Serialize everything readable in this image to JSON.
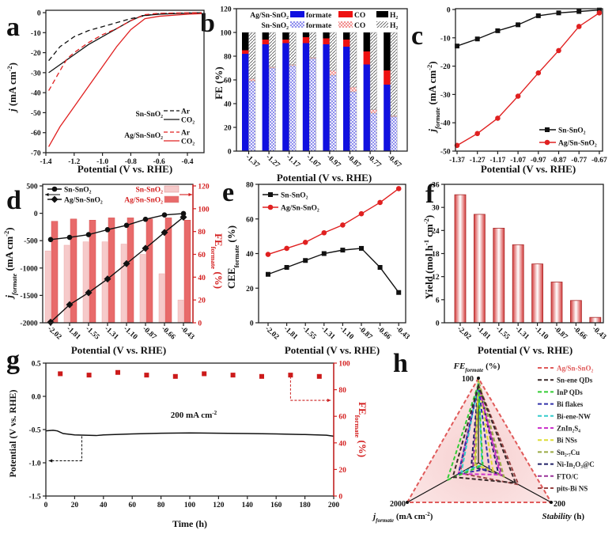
{
  "colors": {
    "sn": "#111111",
    "ag": "#e02020",
    "formate": "#1010e0",
    "co": "#ee1111",
    "h2": "#000000",
    "fe_axis": "#d42020",
    "bar_light": "#f6caca",
    "bar_dark": "#e86a6a"
  },
  "panel_labels": [
    "a",
    "b",
    "c",
    "d",
    "e",
    "f",
    "g",
    "h"
  ],
  "chart_data": [
    {
      "id": "a",
      "type": "line",
      "xlabel": "Potential (V vs. RHE)",
      "ylabel": [
        [
          "j",
          "i"
        ],
        [
          " (mA cm",
          ""
        ],
        [
          "-2",
          "sup"
        ],
        [
          ")",
          ""
        ]
      ],
      "xlim": [
        -1.4,
        -0.3
      ],
      "ylim": [
        -70,
        0
      ],
      "xticks": [
        -1.4,
        -1.2,
        -1.0,
        -0.8,
        -0.6,
        -0.4
      ],
      "xtick_labels": [
        "-1.4",
        "-1.2",
        "-1.0",
        "-0.8",
        "-0.6",
        "-0.4"
      ],
      "yticks": [
        0,
        -10,
        -20,
        -30,
        -40,
        -50,
        -60,
        -70
      ],
      "ytick_labels": [
        "0",
        "-10",
        "-20",
        "-30",
        "-40",
        "-50",
        "-60",
        "-70"
      ],
      "legend_groups": [
        {
          "name": "Sn-SnO₂",
          "entries": [
            "Ar",
            "CO₂"
          ]
        },
        {
          "name": "Ag/Sn-SnO₂",
          "entries": [
            "Ar",
            "CO₂"
          ]
        }
      ],
      "series": [
        {
          "group": "Sn-SnO₂",
          "name": "Ar",
          "dash": true,
          "color_key": "sn",
          "points": [
            [
              -1.38,
              -24
            ],
            [
              -1.3,
              -17
            ],
            [
              -1.2,
              -12
            ],
            [
              -1.1,
              -9
            ],
            [
              -1.0,
              -7
            ],
            [
              -0.9,
              -5
            ],
            [
              -0.8,
              -3
            ],
            [
              -0.7,
              -1.5
            ],
            [
              -0.6,
              -0.5
            ],
            [
              -0.3,
              0
            ]
          ]
        },
        {
          "group": "Sn-SnO₂",
          "name": "CO₂",
          "dash": false,
          "color_key": "sn",
          "points": [
            [
              -1.38,
              -30
            ],
            [
              -1.3,
              -26
            ],
            [
              -1.2,
              -21
            ],
            [
              -1.1,
              -16
            ],
            [
              -1.0,
              -12
            ],
            [
              -0.9,
              -8
            ],
            [
              -0.8,
              -4
            ],
            [
              -0.72,
              -1.5
            ],
            [
              -0.6,
              -0.8
            ],
            [
              -0.3,
              0
            ]
          ]
        },
        {
          "group": "Ag/Sn-SnO₂",
          "name": "Ar",
          "dash": true,
          "color_key": "ag",
          "points": [
            [
              -1.38,
              -39
            ],
            [
              -1.3,
              -29
            ],
            [
              -1.25,
              -23
            ],
            [
              -1.2,
              -20
            ],
            [
              -1.1,
              -15
            ],
            [
              -1.0,
              -11
            ],
            [
              -0.9,
              -8
            ],
            [
              -0.8,
              -4
            ],
            [
              -0.7,
              -1
            ],
            [
              -0.6,
              -0.3
            ],
            [
              -0.3,
              0
            ]
          ]
        },
        {
          "group": "Ag/Sn-SnO₂",
          "name": "CO₂",
          "dash": false,
          "color_key": "ag",
          "points": [
            [
              -1.38,
              -67
            ],
            [
              -1.3,
              -57
            ],
            [
              -1.2,
              -47
            ],
            [
              -1.1,
              -37
            ],
            [
              -1.0,
              -27
            ],
            [
              -0.9,
              -17
            ],
            [
              -0.8,
              -8.5
            ],
            [
              -0.7,
              -3
            ],
            [
              -0.6,
              -1.8
            ],
            [
              -0.4,
              -0.8
            ],
            [
              -0.3,
              -0.5
            ]
          ]
        }
      ]
    },
    {
      "id": "b",
      "type": "bar",
      "xlabel": "Potential (V vs. RHE)",
      "ylabel": [
        [
          "FE (%)",
          ""
        ]
      ],
      "ylim": [
        0,
        120
      ],
      "yticks": [
        0,
        20,
        40,
        60,
        80,
        100,
        120
      ],
      "ytick_labels": [
        "0",
        "20",
        "40",
        "60",
        "80",
        "100",
        "120"
      ],
      "categories": [
        "-1.37",
        "-1.27",
        "-1.17",
        "-1.07",
        "-0.97",
        "-0.87",
        "-0.77",
        "-0.67"
      ],
      "legend": {
        "rows": [
          "Ag/Sn-SnO₂",
          "Sn-SnO₂"
        ],
        "products": [
          "formate",
          "CO",
          "H₂"
        ]
      },
      "series": [
        {
          "name": "Ag/Sn-SnO₂",
          "formate": [
            82,
            90,
            91,
            91,
            90,
            88,
            73,
            56
          ],
          "CO": [
            3,
            4,
            3,
            5,
            5,
            6,
            11,
            12
          ],
          "H2": [
            15,
            6,
            6,
            4,
            5,
            6,
            16,
            32
          ]
        },
        {
          "name": "Sn-SnO₂",
          "formate": [
            59,
            70,
            72,
            78,
            64,
            50,
            32,
            29
          ],
          "CO": [
            2,
            1,
            1,
            1,
            4,
            4,
            3,
            1
          ],
          "H2": [
            39,
            29,
            27,
            21,
            32,
            46,
            65,
            70
          ]
        }
      ]
    },
    {
      "id": "c",
      "type": "line",
      "xlabel": "Potential (V vs. RHE)",
      "ylabel": [
        [
          "j",
          "i"
        ],
        [
          "formate",
          "subi"
        ],
        [
          " (mA cm",
          ""
        ],
        [
          "-2",
          "sup"
        ],
        [
          ")",
          ""
        ]
      ],
      "ylim": [
        -50,
        0
      ],
      "yticks": [
        0,
        -10,
        -20,
        -30,
        -40,
        -50
      ],
      "ytick_labels": [
        "0",
        "-10",
        "-20",
        "-30",
        "-40",
        "-50"
      ],
      "categories": [
        "-1.37",
        "-1.27",
        "-1.17",
        "-1.07",
        "-0.97",
        "-0.87",
        "-0.77",
        "-0.67"
      ],
      "series": [
        {
          "name": "Sn-SnO₂",
          "marker": "square",
          "color_key": "sn",
          "values": [
            -12.9,
            -10.4,
            -7.5,
            -5.4,
            -2.2,
            -1.2,
            -0.7,
            -0.2
          ]
        },
        {
          "name": "Ag/Sn-SnO₂",
          "marker": "circle",
          "color_key": "ag",
          "values": [
            -48,
            -43.8,
            -38.4,
            -30.6,
            -22.4,
            -14.5,
            -6,
            -1.2
          ]
        }
      ]
    },
    {
      "id": "d",
      "type": "line+bar",
      "xlabel": "Potential (V vs. RHE)",
      "ylabel": [
        [
          "j",
          "i"
        ],
        [
          "formate",
          "subi"
        ],
        [
          " (mA cm",
          ""
        ],
        [
          "-2",
          "sup"
        ],
        [
          ")",
          ""
        ]
      ],
      "ylabel_right": [
        [
          "FE",
          ""
        ],
        [
          "formate",
          "sub"
        ],
        [
          " (%)",
          ""
        ]
      ],
      "ylim": [
        -2000,
        500
      ],
      "yticks": [
        500,
        0,
        -500,
        -1000,
        -1500,
        -2000
      ],
      "ytick_labels": [
        "500",
        "0",
        "-500",
        "-1000",
        "-1500",
        "-2000"
      ],
      "ylim_right": [
        0,
        120
      ],
      "yticks_right": [
        0,
        20,
        40,
        60,
        80,
        100,
        120
      ],
      "ytick_labels_right": [
        "0",
        "20",
        "40",
        "60",
        "80",
        "100",
        "120"
      ],
      "categories": [
        "-2.02",
        "-1.81",
        "-1.55",
        "-1.31",
        "-1.10",
        "-0.87",
        "-0.66",
        "-0.43"
      ],
      "lines": [
        {
          "name": "Sn-SnO₂",
          "marker": "circle",
          "values": [
            -480,
            -440,
            -390,
            -300,
            -220,
            -110,
            -30,
            -5
          ]
        },
        {
          "name": "Ag/Sn-SnO₂",
          "marker": "diamond",
          "values": [
            -1990,
            -1670,
            -1450,
            -1200,
            -920,
            -640,
            -350,
            -70
          ]
        }
      ],
      "bars": [
        {
          "name": "Sn-SnO₂",
          "color_key": "bar_light",
          "values": [
            63,
            68,
            71,
            71,
            69,
            60,
            43,
            20
          ]
        },
        {
          "name": "Ag/Sn-SnO₂",
          "color_key": "bar_dark",
          "values": [
            89,
            91,
            90,
            92,
            92,
            91,
            92,
            90
          ]
        }
      ]
    },
    {
      "id": "e",
      "type": "line",
      "xlabel": "Potential (V vs. RHE)",
      "ylabel": [
        [
          "CEE",
          ""
        ],
        [
          "formate",
          "sub"
        ],
        [
          " (%)",
          ""
        ]
      ],
      "ylim": [
        0,
        80
      ],
      "yticks": [
        0,
        20,
        40,
        60,
        80
      ],
      "ytick_labels": [
        "0",
        "20",
        "40",
        "60",
        "80"
      ],
      "categories": [
        "-2.02",
        "-1.81",
        "-1.55",
        "-1.31",
        "-1.10",
        "-0.87",
        "-0.66",
        "-0.43"
      ],
      "series": [
        {
          "name": "Sn-SnO₂",
          "marker": "square",
          "color_key": "sn",
          "values": [
            28,
            32,
            36,
            40,
            42,
            43,
            32,
            17.5
          ]
        },
        {
          "name": "Ag/Sn-SnO₂",
          "marker": "circle",
          "color_key": "ag",
          "values": [
            39.5,
            43,
            46.5,
            52,
            56.5,
            63,
            69.5,
            77.5
          ]
        }
      ]
    },
    {
      "id": "f",
      "type": "bar",
      "xlabel": "Potential (V vs. RHE)",
      "ylabel": [
        [
          "Yield (mol h",
          ""
        ],
        [
          "-1",
          "sup"
        ],
        [
          " cm",
          ""
        ],
        [
          "-2",
          "sup"
        ],
        [
          ")",
          ""
        ]
      ],
      "ylim": [
        0,
        36
      ],
      "yticks": [
        0,
        6,
        12,
        18,
        24,
        30,
        36
      ],
      "ytick_labels": [
        "0",
        "6",
        "12",
        "18",
        "24",
        "30",
        "36"
      ],
      "categories": [
        "-2.02",
        "-1.81",
        "-1.55",
        "-1.31",
        "-1.10",
        "-0.87",
        "-0.66",
        "-0.43"
      ],
      "values": [
        33.3,
        28.2,
        24.6,
        20.3,
        15.3,
        10.6,
        5.8,
        1.4
      ]
    },
    {
      "id": "g",
      "type": "line+scatter",
      "xlabel": "Time (h)",
      "ylabel": [
        [
          "Potential (V vs. RHE)",
          ""
        ]
      ],
      "ylabel_right": [
        [
          "FE",
          ""
        ],
        [
          "formate",
          "sub"
        ],
        [
          " (%)",
          ""
        ]
      ],
      "annotation": [
        [
          "200 mA cm",
          ""
        ],
        [
          "-2",
          "sup"
        ]
      ],
      "xlim": [
        0,
        200
      ],
      "xticks": [
        0,
        20,
        40,
        60,
        80,
        100,
        120,
        140,
        160,
        180,
        200
      ],
      "xtick_labels": [
        "0",
        "20",
        "40",
        "60",
        "80",
        "100",
        "120",
        "140",
        "160",
        "180",
        "200"
      ],
      "ylim": [
        -1.5,
        0.5
      ],
      "yticks": [
        0.5,
        0,
        -0.5,
        -1,
        -1.5
      ],
      "ytick_labels": [
        "0.5",
        "0.0",
        "-0.5",
        "-1.0",
        "-1.5"
      ],
      "ylim_right": [
        0,
        100
      ],
      "yticks_right": [
        0,
        20,
        40,
        60,
        80,
        100
      ],
      "ytick_labels_right": [
        "0",
        "20",
        "40",
        "60",
        "80",
        "100"
      ],
      "potential": [
        [
          0,
          -0.52
        ],
        [
          5,
          -0.51
        ],
        [
          8,
          -0.52
        ],
        [
          12,
          -0.56
        ],
        [
          20,
          -0.58
        ],
        [
          35,
          -0.59
        ],
        [
          40,
          -0.58
        ],
        [
          60,
          -0.565
        ],
        [
          80,
          -0.555
        ],
        [
          100,
          -0.55
        ],
        [
          120,
          -0.555
        ],
        [
          140,
          -0.56
        ],
        [
          160,
          -0.565
        ],
        [
          180,
          -0.575
        ],
        [
          195,
          -0.585
        ],
        [
          200,
          -0.6
        ]
      ],
      "fe": [
        [
          10,
          92
        ],
        [
          30,
          91
        ],
        [
          50,
          93
        ],
        [
          70,
          91
        ],
        [
          90,
          90
        ],
        [
          110,
          92
        ],
        [
          130,
          91
        ],
        [
          150,
          90
        ],
        [
          170,
          91
        ],
        [
          190,
          90
        ]
      ]
    },
    {
      "id": "h",
      "type": "radar",
      "axes": [
        {
          "key": "fe",
          "label": [
            [
              "FE",
              "bi"
            ],
            [
              "formate",
              "subi"
            ],
            [
              " (%)",
              ""
            ]
          ],
          "max_label": "100",
          "max": 100
        },
        {
          "key": "j",
          "label": [
            [
              "j",
              "i"
            ],
            [
              "formate",
              "subi"
            ],
            [
              " (mA cm",
              ""
            ],
            [
              "-2",
              "sup"
            ],
            [
              ")",
              ""
            ]
          ],
          "max_label": "2000",
          "max": 2000
        },
        {
          "key": "stab",
          "label": [
            [
              "Stability",
              "bi"
            ],
            [
              " (h)",
              ""
            ]
          ],
          "max_label": "200",
          "max": 200
        }
      ],
      "series": [
        {
          "name": "Ag/Sn-SnO₂",
          "color": "#e05a5a",
          "fe": 100,
          "j": 2000,
          "stab": 200
        },
        {
          "name": "Sn-ene QDs",
          "color": "#3a2a2a",
          "fe": 91,
          "j": 720,
          "stab": 102
        },
        {
          "name": "InP QDs",
          "color": "#33cc33",
          "fe": 93,
          "j": 880,
          "stab": 12
        },
        {
          "name": "Bi flakes",
          "color": "#3333aa",
          "fe": 90,
          "j": 560,
          "stab": 30
        },
        {
          "name": "Bi-ene-NW",
          "color": "#33cccc",
          "fe": 94,
          "j": 480,
          "stab": 10
        },
        {
          "name": "ZnIn₂S₄",
          "color": "#cc33cc",
          "fe": 92,
          "j": 560,
          "stab": 60
        },
        {
          "name": "Bi NSs",
          "color": "#dddd33",
          "fe": 95,
          "j": 100,
          "stab": 40
        },
        {
          "name": "Sn₂.₇Cu",
          "color": "#99aa44",
          "fe": 98,
          "j": 80,
          "stab": 70
        },
        {
          "name": "Ni-In₂O₃@C",
          "color": "#222266",
          "fe": 93,
          "j": 200,
          "stab": 55
        },
        {
          "name": "FTO/C",
          "color": "#993399",
          "fe": 90,
          "j": 150,
          "stab": 65
        },
        {
          "name": "pits-Bi NS",
          "color": "#994444",
          "fe": 92,
          "j": 520,
          "stab": 110
        }
      ]
    }
  ]
}
